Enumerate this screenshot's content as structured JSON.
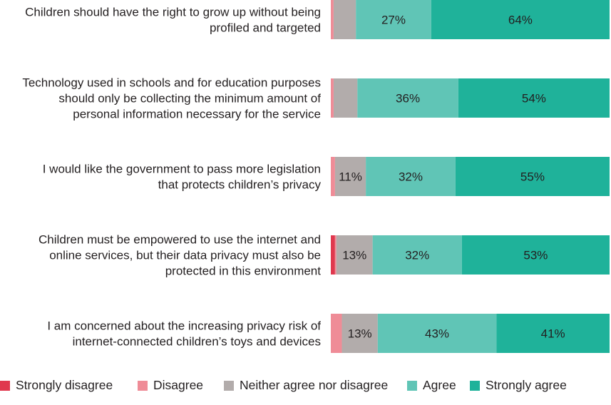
{
  "chart_data": {
    "type": "bar",
    "orientation": "horizontal",
    "stacked": true,
    "grid": false,
    "legend_position": "bottom",
    "categories": [
      [
        "Children should have the right to grow up without being",
        "profiled and targeted"
      ],
      [
        "Technology used in schools and for education purposes",
        "should only be collecting the minimum amount of",
        "personal information necessary for the service"
      ],
      [
        "I would like the government to pass more legislation",
        "that protects children’s privacy"
      ],
      [
        "Children must be empowered to use the internet and",
        "online services, but their data privacy must also be",
        "protected in this environment"
      ],
      [
        "I am concerned about the increasing privacy risk of",
        "internet-connected children’s toys and devices"
      ]
    ],
    "series": [
      {
        "name": "Strongly disagree",
        "color": "#e0384e",
        "values": [
          0,
          0,
          0,
          1.5,
          0
        ],
        "labels": [
          "",
          "",
          "",
          "",
          ""
        ]
      },
      {
        "name": "Disagree",
        "color": "#ef8c97",
        "values": [
          1,
          1,
          1.5,
          0.5,
          4
        ],
        "labels": [
          "",
          "",
          "",
          "",
          ""
        ]
      },
      {
        "name": "Neither agree nor disagree",
        "color": "#b2acab",
        "values": [
          8,
          8.5,
          11,
          13,
          13
        ],
        "labels": [
          "",
          "",
          "11%",
          "13%",
          "13%"
        ]
      },
      {
        "name": "Agree",
        "color": "#60c5b6",
        "values": [
          27,
          36,
          32,
          32,
          43
        ],
        "labels": [
          "27%",
          "36%",
          "32%",
          "32%",
          "43%"
        ]
      },
      {
        "name": "Strongly agree",
        "color": "#1fb29a",
        "values": [
          64,
          54,
          55,
          53,
          41
        ],
        "labels": [
          "64%",
          "54%",
          "55%",
          "53%",
          "41%"
        ]
      }
    ],
    "xlim": [
      0,
      100
    ]
  }
}
